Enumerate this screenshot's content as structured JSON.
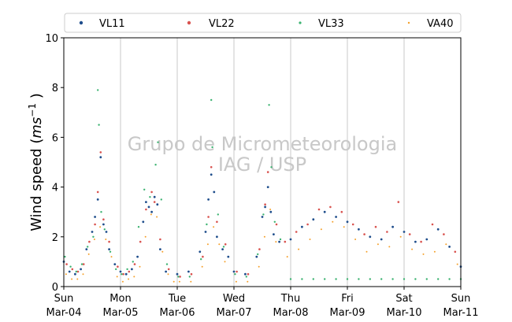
{
  "chart_data": {
    "type": "scatter",
    "ylabel": "Wind speed (ms⁻¹ )",
    "ylabel_main": "Wind speed (",
    "ylabel_unit": "ms",
    "ylabel_exp": "−1",
    "ylabel_close": " )",
    "ylim": [
      0,
      10
    ],
    "yticks": [
      0,
      2,
      4,
      6,
      8,
      10
    ],
    "xlim": [
      "2018-03-04",
      "2018-03-11"
    ],
    "xticks": [
      {
        "day": 0,
        "line1": "Sun",
        "line2": "Mar-04"
      },
      {
        "day": 1,
        "line1": "Mon",
        "line2": "Mar-05"
      },
      {
        "day": 2,
        "line1": "Tue",
        "line2": "Mar-06"
      },
      {
        "day": 3,
        "line1": "Wed",
        "line2": "Mar-07"
      },
      {
        "day": 4,
        "line1": "Thu",
        "line2": "Mar-08"
      },
      {
        "day": 5,
        "line1": "Fri",
        "line2": "Mar-09"
      },
      {
        "day": 6,
        "line1": "Sat",
        "line2": "Mar-10"
      },
      {
        "day": 7,
        "line1": "Sun",
        "line2": "Mar-11"
      }
    ],
    "grid": "vertical-at-days",
    "legend_position": "top",
    "watermark_line1": "Grupo de Micrometeorologia",
    "watermark_line2": "IAG / USP",
    "series": [
      {
        "name": "VL11",
        "color": "#1f4e8c",
        "x": [
          0.0,
          0.1,
          0.2,
          0.3,
          0.4,
          0.5,
          0.55,
          0.6,
          0.65,
          0.7,
          0.75,
          0.8,
          0.9,
          1.0,
          1.1,
          1.2,
          1.3,
          1.4,
          1.45,
          1.5,
          1.55,
          1.6,
          1.65,
          1.7,
          1.8,
          2.0,
          2.2,
          2.4,
          2.5,
          2.55,
          2.6,
          2.65,
          2.7,
          2.8,
          2.9,
          3.0,
          3.2,
          3.4,
          3.5,
          3.55,
          3.6,
          3.65,
          3.7,
          3.8,
          4.0,
          4.2,
          4.4,
          4.6,
          4.8,
          5.0,
          5.2,
          5.4,
          5.6,
          5.8,
          6.0,
          6.2,
          6.4,
          6.6,
          6.8,
          7.0
        ],
        "y": [
          1.0,
          0.6,
          0.5,
          0.7,
          1.5,
          2.2,
          2.8,
          3.5,
          5.2,
          2.5,
          2.2,
          1.5,
          0.9,
          0.6,
          0.5,
          0.7,
          1.2,
          2.6,
          3.4,
          3.2,
          3.0,
          3.6,
          3.3,
          1.5,
          0.6,
          0.5,
          0.6,
          1.4,
          2.2,
          3.5,
          4.5,
          3.8,
          2.0,
          1.5,
          1.2,
          0.6,
          0.5,
          1.2,
          2.8,
          3.2,
          4.0,
          3.0,
          2.1,
          1.8,
          1.9,
          2.4,
          2.7,
          3.0,
          2.8,
          2.6,
          2.3,
          2.0,
          1.9,
          2.4,
          2.2,
          1.8,
          1.9,
          2.3,
          1.6,
          0.8
        ]
      },
      {
        "name": "VL22",
        "color": "#d9534f",
        "x": [
          0.05,
          0.15,
          0.25,
          0.35,
          0.45,
          0.55,
          0.6,
          0.65,
          0.7,
          0.8,
          0.95,
          1.05,
          1.15,
          1.25,
          1.35,
          1.45,
          1.55,
          1.6,
          1.7,
          1.85,
          2.05,
          2.25,
          2.45,
          2.55,
          2.6,
          2.7,
          2.85,
          3.05,
          3.25,
          3.45,
          3.55,
          3.6,
          3.75,
          3.9,
          4.1,
          4.3,
          4.5,
          4.7,
          4.9,
          5.1,
          5.3,
          5.5,
          5.7,
          5.9,
          6.1,
          6.3,
          6.5,
          6.7,
          6.9
        ],
        "y": [
          0.9,
          0.7,
          0.6,
          0.9,
          1.8,
          2.5,
          3.8,
          5.4,
          2.7,
          1.8,
          0.8,
          0.5,
          0.6,
          0.9,
          1.8,
          3.1,
          3.8,
          3.4,
          1.9,
          0.7,
          0.4,
          0.5,
          1.2,
          2.8,
          4.8,
          2.6,
          1.7,
          0.6,
          0.5,
          1.5,
          3.3,
          4.6,
          2.5,
          1.8,
          2.2,
          2.5,
          3.1,
          3.2,
          3.0,
          2.5,
          2.1,
          2.4,
          2.2,
          3.4,
          2.1,
          1.8,
          2.5,
          2.1,
          1.4
        ]
      },
      {
        "name": "VL33",
        "color": "#3cb371",
        "x": [
          0.02,
          0.12,
          0.22,
          0.32,
          0.42,
          0.52,
          0.6,
          0.62,
          0.66,
          0.72,
          0.82,
          0.92,
          1.02,
          1.12,
          1.22,
          1.32,
          1.42,
          1.52,
          1.62,
          1.66,
          1.72,
          1.82,
          2.02,
          2.22,
          2.42,
          2.52,
          2.6,
          2.62,
          2.72,
          2.82,
          3.02,
          3.22,
          3.42,
          3.52,
          3.62,
          3.66,
          3.72,
          3.82,
          4.0,
          4.2,
          4.4,
          4.6,
          4.8,
          5.0,
          5.2,
          5.4,
          5.6,
          5.8,
          6.0,
          6.2,
          6.4,
          6.6,
          6.8,
          7.0
        ],
        "y": [
          1.2,
          0.8,
          0.6,
          0.9,
          1.6,
          2.0,
          7.9,
          6.5,
          3.0,
          2.3,
          1.4,
          0.7,
          0.5,
          0.7,
          1.0,
          2.4,
          3.9,
          3.6,
          4.9,
          5.8,
          3.5,
          0.9,
          0.4,
          0.4,
          1.1,
          2.5,
          7.5,
          5.6,
          2.9,
          1.6,
          0.5,
          0.4,
          1.3,
          2.9,
          7.3,
          4.8,
          2.6,
          1.9,
          0.3,
          0.3,
          0.3,
          0.3,
          0.3,
          0.3,
          0.3,
          0.3,
          0.3,
          0.3,
          0.3,
          0.3,
          0.3,
          0.3,
          0.3,
          0.3
        ]
      },
      {
        "name": "VA40",
        "color": "#f5a02a",
        "x": [
          0.04,
          0.14,
          0.24,
          0.34,
          0.44,
          0.54,
          0.64,
          0.74,
          0.84,
          0.94,
          1.04,
          1.14,
          1.24,
          1.34,
          1.44,
          1.54,
          1.64,
          1.74,
          1.84,
          1.94,
          2.04,
          2.24,
          2.44,
          2.54,
          2.64,
          2.74,
          2.84,
          3.04,
          3.24,
          3.44,
          3.54,
          3.64,
          3.74,
          3.94,
          4.14,
          4.34,
          4.54,
          4.74,
          4.94,
          5.14,
          5.34,
          5.54,
          5.74,
          5.94,
          6.14,
          6.34,
          6.54,
          6.74,
          6.94
        ],
        "y": [
          0.5,
          0.3,
          0.3,
          0.5,
          1.3,
          1.9,
          2.4,
          1.9,
          1.2,
          0.4,
          0.2,
          0.3,
          0.4,
          0.8,
          2.0,
          2.9,
          2.8,
          1.4,
          0.5,
          0.2,
          0.2,
          0.2,
          0.8,
          1.7,
          2.4,
          1.7,
          1.0,
          0.2,
          0.2,
          0.8,
          2.0,
          3.1,
          1.8,
          1.2,
          1.5,
          1.9,
          2.3,
          2.6,
          2.4,
          1.9,
          1.4,
          1.7,
          1.6,
          2.0,
          1.5,
          1.3,
          1.4,
          1.7,
          0.9
        ]
      }
    ]
  }
}
